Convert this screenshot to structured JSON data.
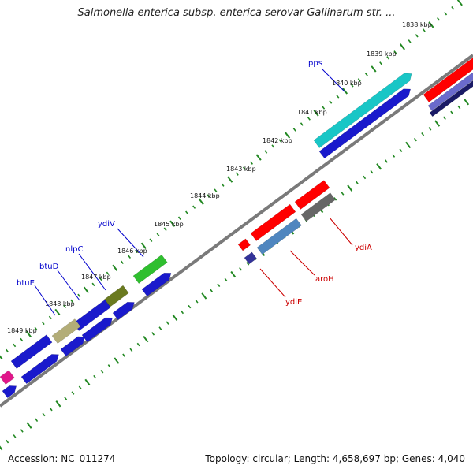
{
  "title": "Salmonella enterica subsp. enterica serovar Gallinarum str. ...",
  "footer": {
    "accession": "Accession: NC_011274",
    "topology": "Topology: circular; Length: 4,658,697 bp; Genes: 4,040"
  },
  "colors": {
    "backbone": "#808080",
    "tick": "#228822",
    "label_forward": "#0000cc",
    "label_reverse": "#cc0000"
  },
  "kbp_labels": [
    "1838 kbp",
    "1839 kbp",
    "1840 kbp",
    "1841 kbp",
    "1842 kbp",
    "1843 kbp",
    "1844 kbp",
    "1845 kbp",
    "1846 kbp",
    "1847 kbp",
    "1848 kbp",
    "1849 kbp"
  ],
  "genes": [
    {
      "name": "pps",
      "strand": "forward",
      "color": "#0000cc"
    },
    {
      "name": "ydiV",
      "strand": "forward",
      "color": "#0000cc"
    },
    {
      "name": "nlpC",
      "strand": "forward",
      "color": "#0000cc"
    },
    {
      "name": "btuD",
      "strand": "forward",
      "color": "#0000cc"
    },
    {
      "name": "btuE",
      "strand": "forward",
      "color": "#0000cc"
    },
    {
      "name": "ydiA",
      "strand": "reverse",
      "color": "#cc0000"
    },
    {
      "name": "aroH",
      "strand": "reverse",
      "color": "#cc0000"
    },
    {
      "name": "ydiE",
      "strand": "reverse",
      "color": "#cc0000"
    }
  ]
}
